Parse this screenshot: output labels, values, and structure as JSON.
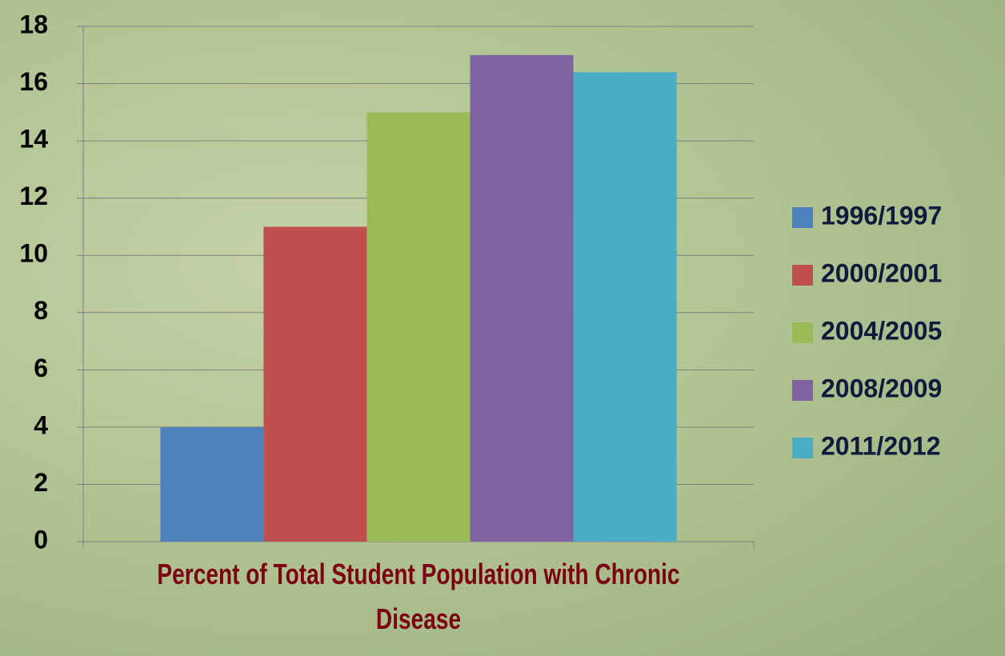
{
  "chart_data": {
    "type": "bar",
    "categories": [
      "Percent of Total Student Population with Chronic Disease"
    ],
    "series": [
      {
        "name": "1996/1997",
        "color": "#4f81bd",
        "values": [
          4
        ]
      },
      {
        "name": "2000/2001",
        "color": "#c0504d",
        "values": [
          11
        ]
      },
      {
        "name": "2004/2005",
        "color": "#9bbb59",
        "values": [
          15
        ]
      },
      {
        "name": "2008/2009",
        "color": "#8064a2",
        "values": [
          17
        ]
      },
      {
        "name": "2011/2012",
        "color": "#4bacc6",
        "values": [
          16.4
        ]
      }
    ],
    "ylim": [
      0,
      18
    ],
    "yticks": [
      0,
      2,
      4,
      6,
      8,
      10,
      12,
      14,
      16,
      18
    ],
    "grid": true,
    "legend": "right"
  }
}
